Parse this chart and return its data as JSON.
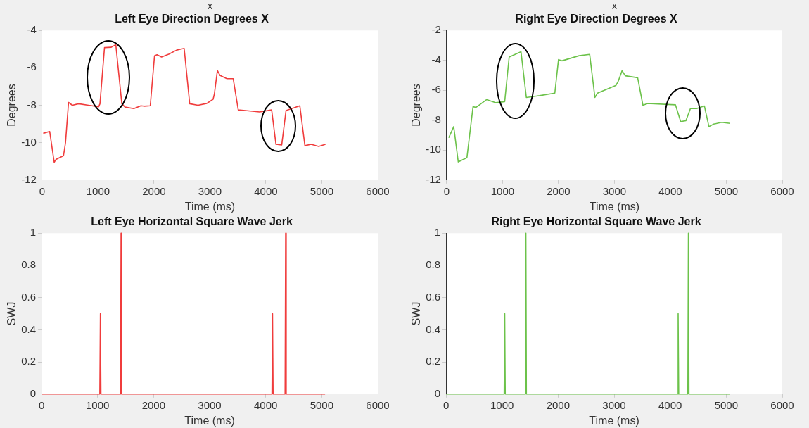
{
  "chart_data": [
    {
      "type": "line",
      "annotations": [
        "x"
      ],
      "title": "Left Eye Direction Degrees X",
      "xlabel": "Time (ms)",
      "ylabel": "Degrees",
      "color": "#f03c3c",
      "xlim": [
        0,
        6000
      ],
      "xticks": [
        0,
        1000,
        2000,
        3000,
        4000,
        5000,
        6000
      ],
      "ylim": [
        -12,
        -4
      ],
      "yticks": [
        -12,
        -10,
        -8,
        -6,
        -4
      ],
      "x": [
        20,
        135,
        216,
        247,
        382,
        418,
        472,
        540,
        652,
        827,
        1011,
        1034,
        1115,
        1236,
        1317,
        1425,
        1483,
        1640,
        1766,
        1820,
        1933,
        2009,
        2054,
        2135,
        2270,
        2405,
        2539,
        2638,
        2787,
        2944,
        3056,
        3079,
        3133,
        3178,
        3303,
        3416,
        3506,
        3663,
        3888,
        4103,
        4180,
        4283,
        4360,
        4607,
        4697,
        4809,
        4944,
        5065
      ],
      "values": [
        -9.5,
        -9.4,
        -11.05,
        -10.9,
        -10.7,
        -10.0,
        -7.85,
        -8.0,
        -7.92,
        -8.0,
        -8.08,
        -7.92,
        -4.92,
        -4.9,
        -4.76,
        -7.92,
        -8.1,
        -8.18,
        -8.03,
        -8.05,
        -8.03,
        -5.36,
        -5.3,
        -5.42,
        -5.26,
        -5.05,
        -4.96,
        -7.92,
        -8.0,
        -7.9,
        -7.68,
        -7.4,
        -6.14,
        -6.4,
        -6.58,
        -6.58,
        -8.25,
        -8.29,
        -8.36,
        -8.25,
        -10.09,
        -10.12,
        -8.28,
        -8.03,
        -10.16,
        -10.09,
        -10.2,
        -10.09
      ]
    },
    {
      "type": "line",
      "annotations": [
        "x"
      ],
      "title": "Right Eye Direction Degrees X",
      "xlabel": "Time (ms)",
      "ylabel": "Degrees",
      "color": "#6cc24a",
      "xlim": [
        0,
        6000
      ],
      "xticks": [
        0,
        1000,
        2000,
        3000,
        4000,
        5000,
        6000
      ],
      "ylim": [
        -12,
        -2
      ],
      "yticks": [
        -12,
        -10,
        -8,
        -6,
        -4,
        -2
      ],
      "x": [
        38,
        127,
        208,
        363,
        472,
        528,
        717,
        882,
        1038,
        1118,
        1330,
        1425,
        1660,
        1934,
        2000,
        2061,
        2368,
        2557,
        2651,
        2698,
        3028,
        3066,
        3137,
        3193,
        3415,
        3509,
        3594,
        4090,
        4184,
        4278,
        4358,
        4467,
        4608,
        4689,
        4774,
        4915,
        5066
      ],
      "values": [
        -9.17,
        -8.43,
        -10.79,
        -10.5,
        -7.1,
        -7.14,
        -6.62,
        -6.83,
        -6.76,
        -3.78,
        -3.43,
        -6.48,
        -6.36,
        -6.19,
        -3.95,
        -4.03,
        -3.69,
        -3.6,
        -6.48,
        -6.19,
        -5.67,
        -5.41,
        -4.69,
        -5.03,
        -5.16,
        -7.0,
        -6.88,
        -6.97,
        -8.09,
        -8.03,
        -7.22,
        -7.22,
        -7.05,
        -8.43,
        -8.26,
        -8.14,
        -8.21
      ]
    },
    {
      "type": "line",
      "title": "Left Eye Horizontal Square Wave Jerk",
      "xlabel": "Time (ms)",
      "ylabel": "SWJ",
      "color": "#f03c3c",
      "xlim": [
        0,
        6000
      ],
      "xticks": [
        0,
        1000,
        2000,
        3000,
        4000,
        5000,
        6000
      ],
      "ylim": [
        0,
        1
      ],
      "yticks": [
        0,
        0.2,
        0.4,
        0.6,
        0.8,
        1
      ],
      "x": [
        0,
        1040,
        1050,
        1060,
        1410,
        1419,
        1428,
        4112,
        4122,
        4132,
        4346,
        4356,
        4366,
        5060
      ],
      "values": [
        0,
        0,
        0.5,
        0,
        0,
        1,
        0,
        0,
        0.5,
        0,
        0,
        1,
        0,
        0
      ]
    },
    {
      "type": "line",
      "title": "Right Eye Horizontal Square Wave Jerk",
      "xlabel": "Time (ms)",
      "ylabel": "SWJ",
      "color": "#6cc24a",
      "xlim": [
        0,
        6000
      ],
      "xticks": [
        0,
        1000,
        2000,
        3000,
        4000,
        5000,
        6000
      ],
      "ylim": [
        0,
        1
      ],
      "yticks": [
        0,
        0.2,
        0.4,
        0.6,
        0.8,
        1
      ],
      "x": [
        0,
        1037,
        1047,
        1057,
        1416,
        1425,
        1434,
        4132,
        4142,
        4152,
        4315,
        4325,
        4335,
        5060
      ],
      "values": [
        0,
        0,
        0.5,
        0,
        0,
        1,
        0,
        0,
        0.5,
        0,
        0,
        1,
        0,
        0
      ]
    }
  ]
}
